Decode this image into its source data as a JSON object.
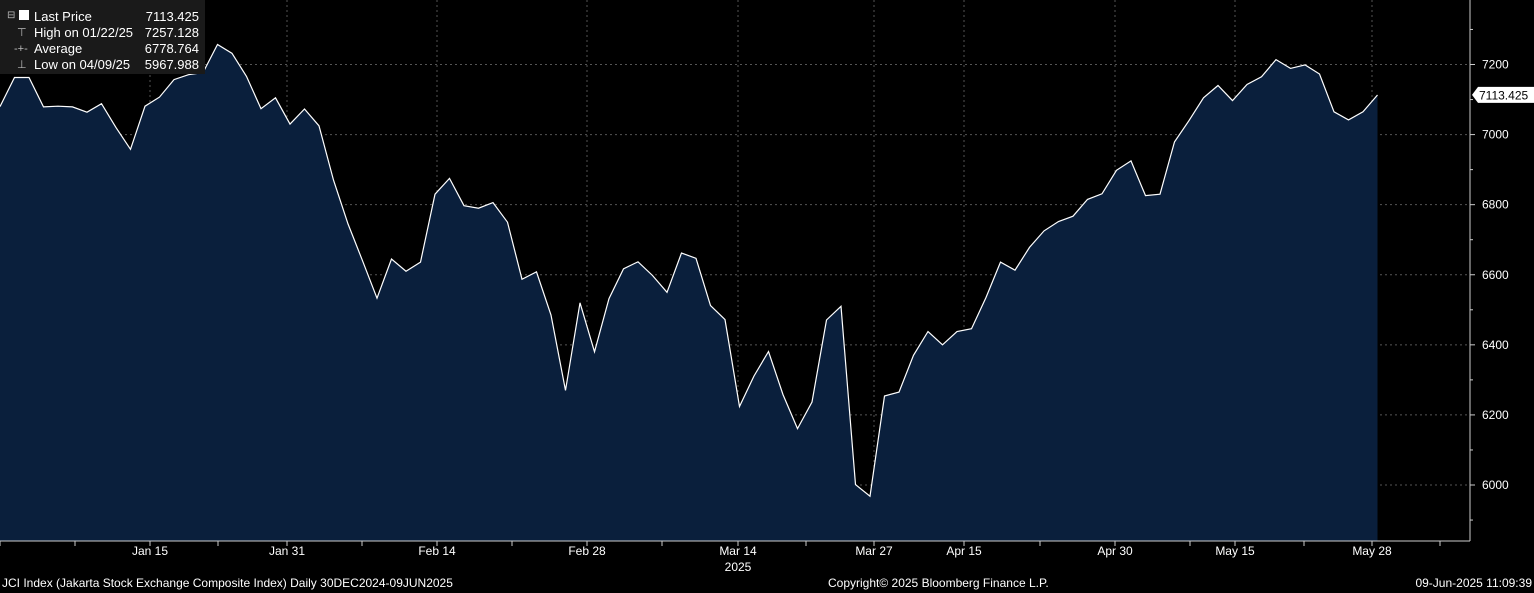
{
  "legend": {
    "last_price_label": "Last Price",
    "last_price_value": "7113.425",
    "high_label": "High on 01/22/25",
    "high_value": "7257.128",
    "average_label": "Average",
    "average_value": "6778.764",
    "low_label": "Low on 04/09/25",
    "low_value": "5967.988"
  },
  "footer": {
    "left": "JCI Index (Jakarta Stock Exchange Composite Index)  Daily 30DEC2024-09JUN2025",
    "center": "Copyright© 2025 Bloomberg Finance L.P.",
    "right": "09-Jun-2025 11:09:39"
  },
  "colors": {
    "background": "#000000",
    "area_fill": "#0a1f3c",
    "line": "#ffffff",
    "grid": "#555555"
  },
  "chart_data": {
    "type": "area",
    "title": "",
    "xlabel": "",
    "ylabel": "",
    "x_tick_labels": [
      "Jan 15",
      "Jan 31",
      "Feb 14",
      "Feb 28",
      "Mar 14",
      "Mar 27",
      "Apr 15",
      "Apr 30",
      "May 15",
      "May 28"
    ],
    "x_year_label": "2025",
    "y_ticks": [
      6000,
      6200,
      6400,
      6600,
      6800,
      7000,
      7200
    ],
    "ylim": [
      5920,
      7370
    ],
    "grid": true,
    "last_value_tag": "7113.425",
    "series": [
      {
        "values": [
          7080,
          7163,
          7163,
          7079,
          7081,
          7079,
          7064,
          7088,
          7020,
          6958,
          7081,
          7107,
          7157,
          7171,
          7177,
          7257,
          7232,
          7166,
          7074,
          7105,
          7030,
          7073,
          7025,
          6870,
          6745,
          6640,
          6533,
          6645,
          6610,
          6636,
          6830,
          6875,
          6797,
          6790,
          6806,
          6750,
          6587,
          6608,
          6485,
          6270,
          6520,
          6380,
          6532,
          6617,
          6637,
          6598,
          6550,
          6662,
          6647,
          6512,
          6472,
          6224,
          6311,
          6381,
          6258,
          6161,
          6237,
          6471,
          6510,
          6001,
          5968,
          6254,
          6265,
          6370,
          6438,
          6400,
          6438,
          6446,
          6535,
          6636,
          6613,
          6678,
          6725,
          6752,
          6767,
          6815,
          6831,
          6898,
          6925,
          6826,
          6830,
          6979,
          7040,
          7105,
          7140,
          7097,
          7143,
          7165,
          7214,
          7189,
          7199,
          7173,
          7065,
          7042,
          7065,
          7113
        ]
      }
    ]
  }
}
